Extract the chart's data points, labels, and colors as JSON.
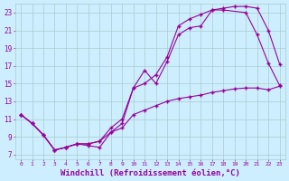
{
  "background_color": "#cceeff",
  "grid_color": "#aacccc",
  "line_color": "#990099",
  "xlabel": "Windchill (Refroidissement éolien,°C)",
  "xlabel_fontsize": 6.5,
  "ylabel_ticks": [
    7,
    9,
    11,
    13,
    15,
    17,
    19,
    21,
    23
  ],
  "xlabel_ticks": [
    0,
    1,
    2,
    3,
    4,
    5,
    6,
    7,
    8,
    9,
    10,
    11,
    12,
    13,
    14,
    15,
    16,
    17,
    18,
    19,
    20,
    21,
    22,
    23
  ],
  "xlim": [
    -0.5,
    23.5
  ],
  "ylim": [
    6.5,
    24.0
  ],
  "curve1_x": [
    0,
    1,
    2,
    3,
    4,
    5,
    6,
    7,
    8,
    9,
    10,
    11,
    12,
    13,
    14,
    15,
    16,
    17,
    18,
    19,
    20,
    21,
    22,
    23
  ],
  "curve1_y": [
    11.5,
    10.5,
    9.2,
    7.5,
    7.8,
    8.2,
    8.0,
    7.8,
    9.5,
    10.5,
    14.5,
    16.5,
    15.0,
    17.5,
    20.5,
    21.3,
    21.5,
    23.3,
    23.5,
    23.7,
    23.7,
    23.5,
    21.0,
    17.2
  ],
  "curve2_x": [
    0,
    1,
    2,
    3,
    4,
    5,
    6,
    7,
    8,
    9,
    10,
    11,
    12,
    13,
    14,
    15,
    16,
    17,
    18,
    20,
    21,
    22,
    23
  ],
  "curve2_y": [
    11.5,
    10.5,
    9.2,
    7.5,
    7.8,
    8.2,
    8.2,
    8.5,
    10.0,
    11.0,
    14.5,
    15.0,
    16.0,
    18.0,
    21.5,
    22.3,
    22.8,
    23.3,
    23.3,
    23.0,
    20.5,
    17.3,
    14.8
  ],
  "curve3_x": [
    0,
    1,
    2,
    3,
    4,
    5,
    6,
    7,
    8,
    9,
    10,
    11,
    12,
    13,
    14,
    15,
    16,
    17,
    18,
    19,
    20,
    21,
    22,
    23
  ],
  "curve3_y": [
    11.5,
    10.5,
    9.2,
    7.5,
    7.8,
    8.2,
    8.2,
    8.5,
    9.5,
    10.0,
    11.5,
    12.0,
    12.5,
    13.0,
    13.3,
    13.5,
    13.7,
    14.0,
    14.2,
    14.4,
    14.5,
    14.5,
    14.3,
    14.7
  ]
}
